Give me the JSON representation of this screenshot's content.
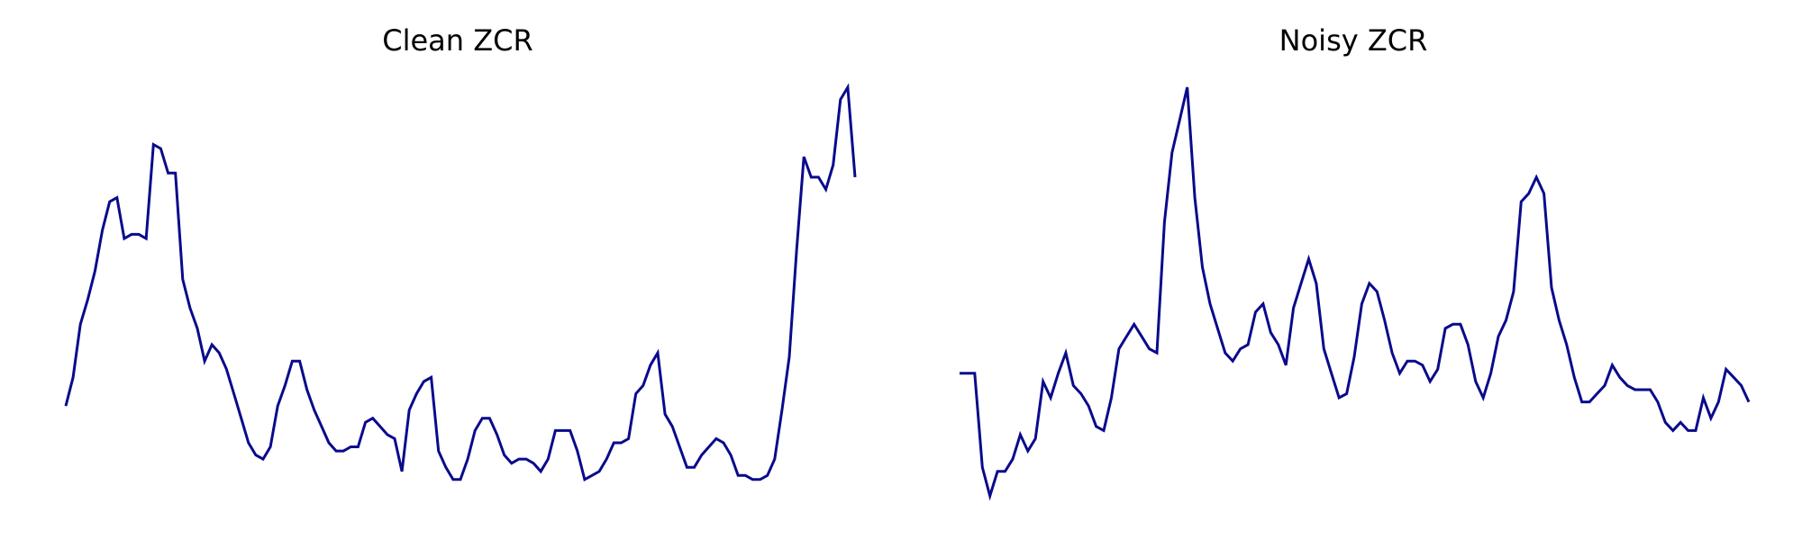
{
  "chart_data": [
    {
      "type": "line",
      "title": "Clean ZCR",
      "xlabel": "",
      "ylabel": "",
      "axes_visible": false,
      "grid": false,
      "color": "#0a0a8c",
      "ylim": [
        0,
        1
      ],
      "series": [
        {
          "values": [
            0.22,
            0.29,
            0.42,
            0.48,
            0.55,
            0.65,
            0.72,
            0.73,
            0.63,
            0.64,
            0.64,
            0.63,
            0.86,
            0.85,
            0.79,
            0.79,
            0.53,
            0.46,
            0.41,
            0.33,
            0.37,
            0.35,
            0.31,
            0.25,
            0.19,
            0.13,
            0.1,
            0.09,
            0.12,
            0.22,
            0.27,
            0.33,
            0.33,
            0.26,
            0.21,
            0.17,
            0.13,
            0.11,
            0.11,
            0.12,
            0.12,
            0.18,
            0.19,
            0.17,
            0.15,
            0.14,
            0.06,
            0.21,
            0.25,
            0.28,
            0.29,
            0.11,
            0.07,
            0.04,
            0.04,
            0.09,
            0.16,
            0.19,
            0.19,
            0.15,
            0.1,
            0.08,
            0.09,
            0.09,
            0.08,
            0.06,
            0.09,
            0.16,
            0.16,
            0.16,
            0.11,
            0.04,
            0.05,
            0.06,
            0.09,
            0.13,
            0.13,
            0.14,
            0.25,
            0.27,
            0.32,
            0.35,
            0.2,
            0.17,
            0.12,
            0.07,
            0.07,
            0.1,
            0.12,
            0.14,
            0.13,
            0.1,
            0.05,
            0.05,
            0.04,
            0.04,
            0.05,
            0.09,
            0.21,
            0.34,
            0.6,
            0.83,
            0.78,
            0.78,
            0.75,
            0.81,
            0.97,
            1.0,
            0.78
          ]
        }
      ]
    },
    {
      "type": "line",
      "title": "Noisy ZCR",
      "xlabel": "",
      "ylabel": "",
      "axes_visible": false,
      "grid": false,
      "color": "#0a0a8c",
      "ylim": [
        0,
        1
      ],
      "series": [
        {
          "values": [
            0.3,
            0.3,
            0.3,
            0.07,
            0.0,
            0.06,
            0.06,
            0.09,
            0.15,
            0.11,
            0.14,
            0.28,
            0.24,
            0.3,
            0.35,
            0.27,
            0.25,
            0.22,
            0.17,
            0.16,
            0.24,
            0.36,
            0.39,
            0.42,
            0.39,
            0.36,
            0.35,
            0.67,
            0.84,
            0.92,
            1.0,
            0.73,
            0.56,
            0.47,
            0.41,
            0.35,
            0.33,
            0.36,
            0.37,
            0.45,
            0.47,
            0.4,
            0.37,
            0.32,
            0.46,
            0.52,
            0.58,
            0.52,
            0.36,
            0.3,
            0.24,
            0.25,
            0.34,
            0.47,
            0.52,
            0.5,
            0.43,
            0.35,
            0.3,
            0.33,
            0.33,
            0.32,
            0.28,
            0.31,
            0.41,
            0.42,
            0.42,
            0.37,
            0.28,
            0.24,
            0.3,
            0.39,
            0.43,
            0.5,
            0.72,
            0.74,
            0.78,
            0.74,
            0.51,
            0.43,
            0.37,
            0.29,
            0.23,
            0.23,
            0.25,
            0.27,
            0.32,
            0.29,
            0.27,
            0.26,
            0.26,
            0.26,
            0.23,
            0.18,
            0.16,
            0.18,
            0.16,
            0.16,
            0.24,
            0.19,
            0.23,
            0.31,
            0.29,
            0.27,
            0.23
          ]
        }
      ]
    }
  ]
}
